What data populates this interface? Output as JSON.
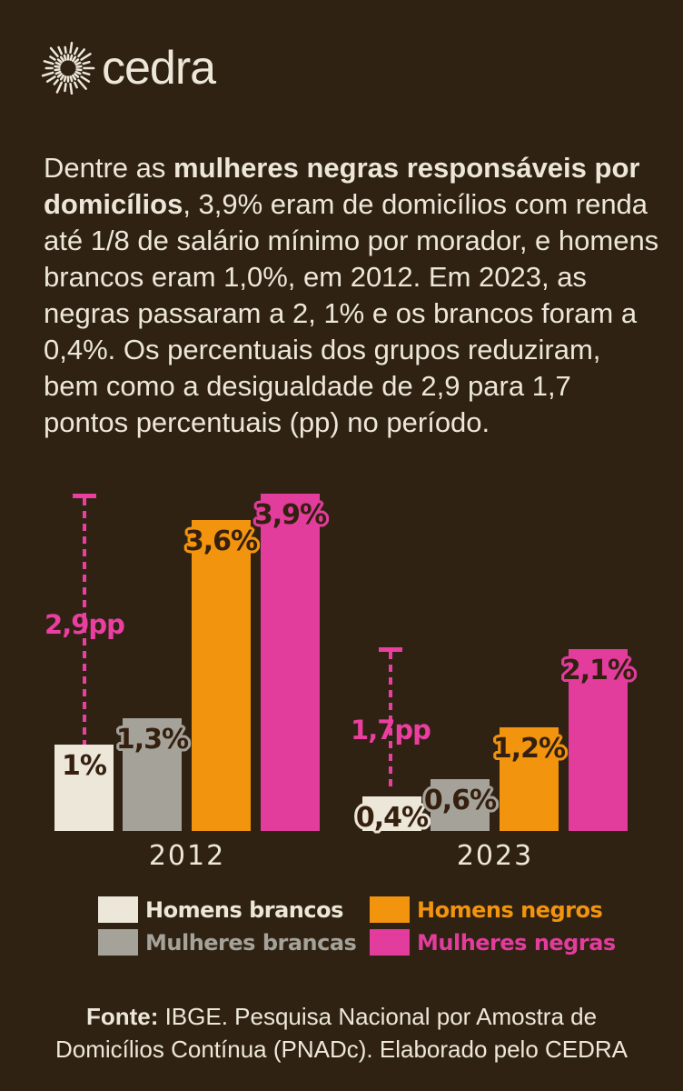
{
  "brand": {
    "name": "cedra"
  },
  "intro": {
    "part1": "Dentre as ",
    "bold": "mulheres negras responsáveis por domicílios",
    "part2": ", 3,9% eram de domicílios com renda até 1/8 de salário mínimo por morador, e homens brancos eram 1,0%, em 2012. Em 2023, as negras passaram a 2, 1% e os brancos foram a 0,4%. Os percentuais dos grupos reduziram, bem como a desigualdade de 2,9 para 1,7 pontos percentuais (pp) no período."
  },
  "chart_data": {
    "type": "bar",
    "categories": [
      "2012",
      "2023"
    ],
    "series": [
      {
        "name": "Homens brancos",
        "color": "#EDE7DA",
        "values": [
          1.0,
          0.4
        ],
        "labels": [
          "1%",
          "0,4%"
        ]
      },
      {
        "name": "Mulheres brancas",
        "color": "#A5A29A",
        "values": [
          1.3,
          0.6
        ],
        "labels": [
          "1,3%",
          "0,6%"
        ]
      },
      {
        "name": "Homens negros",
        "color": "#F2940E",
        "values": [
          3.6,
          1.2
        ],
        "labels": [
          "3,6%",
          "1,2%"
        ]
      },
      {
        "name": "Mulheres negras",
        "color": "#E23C9D",
        "values": [
          3.9,
          2.1
        ],
        "labels": [
          "3,9%",
          "2,1%"
        ]
      }
    ],
    "gap_annotations": [
      {
        "group": "2012",
        "label": "2,9pp",
        "value_pp": 2.9
      },
      {
        "group": "2023",
        "label": "1,7pp",
        "value_pp": 1.7
      }
    ],
    "unit": "%",
    "ylim": [
      0,
      3.9
    ],
    "grid": false,
    "legend_position": "bottom"
  },
  "legend": {
    "items": [
      {
        "label": "Homens brancos",
        "color": "#EDE7DA"
      },
      {
        "label": "Mulheres brancas",
        "color": "#A5A29A"
      },
      {
        "label": "Homens negros",
        "color": "#F2940E"
      },
      {
        "label": "Mulheres negras",
        "color": "#E23C9D"
      }
    ]
  },
  "footer": {
    "fonte_label": "Fonte:",
    "line1_rest": " IBGE. Pesquisa Nacional por Amostra de",
    "line2": "Domicílios Contínua (PNADc). Elaborado pelo CEDRA"
  },
  "colors": {
    "background": "#2F2213",
    "text": "#EDE7DA",
    "dark_value_label": "#35200F",
    "annotation_pink": "#EA3FA0"
  }
}
